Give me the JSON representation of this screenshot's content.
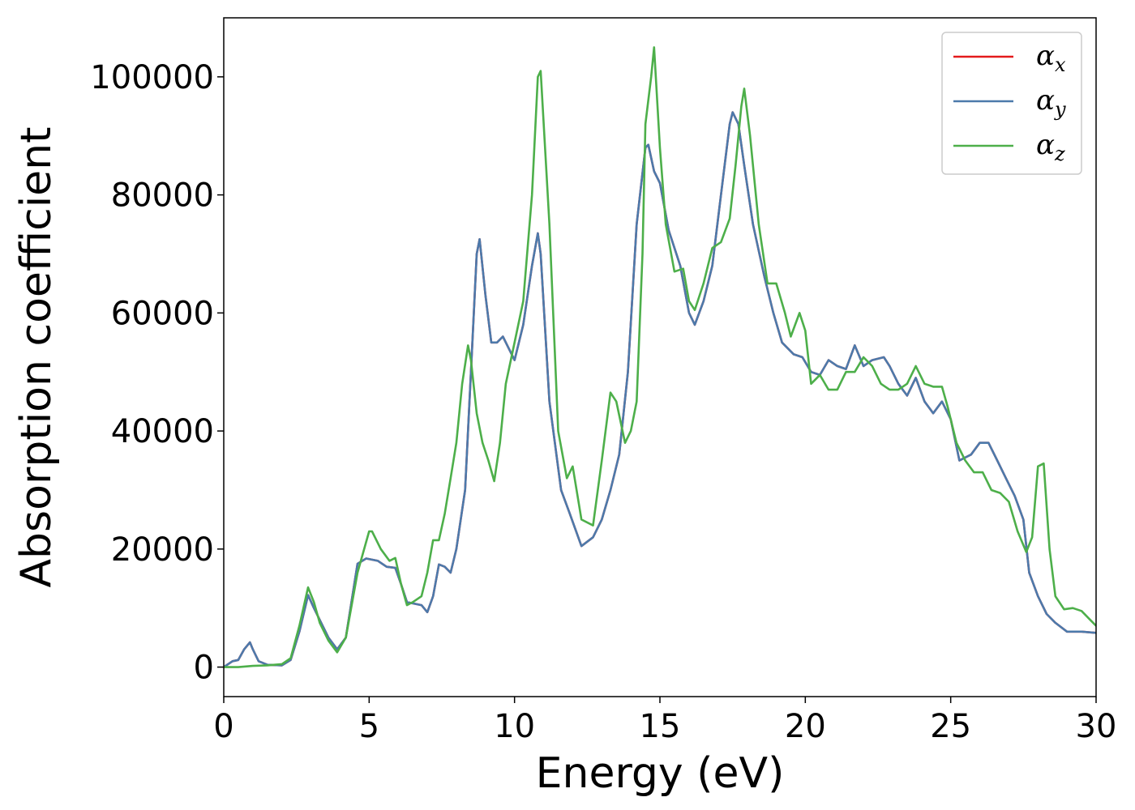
{
  "chart_data": {
    "type": "line",
    "title": "",
    "xlabel": "Energy (eV)",
    "ylabel": "Absorption coefficient",
    "xlim": [
      0,
      30
    ],
    "ylim": [
      -5000,
      110000
    ],
    "xticks": [
      0,
      5,
      10,
      15,
      20,
      25,
      30
    ],
    "yticks": [
      0,
      20000,
      40000,
      60000,
      80000,
      100000
    ],
    "grid": false,
    "legend_position": "top-right",
    "series": [
      {
        "name": "α",
        "subscript": "x",
        "color": "#e41a1c",
        "x": [
          0,
          0.3,
          0.5,
          0.7,
          0.9,
          1.0,
          1.2,
          1.5,
          2.0,
          2.3,
          2.6,
          2.9,
          3.1,
          3.3,
          3.6,
          3.9,
          4.2,
          4.6,
          4.9,
          5.3,
          5.6,
          5.9,
          6.1,
          6.3,
          6.5,
          6.8,
          7.0,
          7.2,
          7.4,
          7.6,
          7.8,
          8.0,
          8.3,
          8.5,
          8.7,
          8.8,
          9.0,
          9.2,
          9.4,
          9.6,
          9.8,
          10.0,
          10.3,
          10.6,
          10.8,
          10.9,
          11.2,
          11.6,
          11.9,
          12.3,
          12.7,
          13.0,
          13.3,
          13.6,
          13.9,
          14.2,
          14.5,
          14.6,
          14.8,
          15.0,
          15.3,
          15.7,
          16.0,
          16.2,
          16.5,
          16.8,
          17.1,
          17.4,
          17.5,
          17.7,
          17.9,
          18.2,
          18.6,
          18.9,
          19.2,
          19.6,
          19.9,
          20.2,
          20.5,
          20.8,
          21.1,
          21.4,
          21.7,
          22.0,
          22.3,
          22.7,
          22.9,
          23.2,
          23.5,
          23.8,
          24.1,
          24.4,
          24.7,
          25.0,
          25.3,
          25.7,
          26.0,
          26.3,
          26.6,
          26.9,
          27.2,
          27.5,
          27.7,
          28.0,
          28.3,
          28.6,
          29.0,
          29.5,
          30.0
        ],
        "y": [
          0,
          1000,
          1200,
          3000,
          4200,
          3000,
          1000,
          400,
          300,
          1200,
          6000,
          12200,
          10000,
          8000,
          5000,
          3000,
          5000,
          17500,
          18400,
          18000,
          17000,
          16800,
          14000,
          11000,
          10800,
          10500,
          9300,
          12000,
          17400,
          17000,
          16000,
          20000,
          30000,
          50000,
          70000,
          72500,
          63000,
          55000,
          55000,
          56000,
          54000,
          52000,
          58000,
          68000,
          73500,
          70000,
          45000,
          30000,
          26000,
          20500,
          22000,
          25000,
          30000,
          36000,
          50000,
          75000,
          88000,
          88500,
          84000,
          82000,
          74000,
          68000,
          60000,
          58000,
          62000,
          68000,
          80000,
          92000,
          94000,
          92000,
          85000,
          75000,
          66000,
          60000,
          55000,
          53000,
          52500,
          50000,
          49500,
          52000,
          51000,
          50500,
          54500,
          51000,
          52000,
          52500,
          51000,
          48000,
          46000,
          49000,
          45000,
          43000,
          45000,
          42000,
          35000,
          36000,
          38000,
          38000,
          35000,
          32000,
          29000,
          25000,
          16000,
          12000,
          9000,
          7500,
          6000,
          6000,
          5800
        ]
      },
      {
        "name": "α",
        "subscript": "y",
        "color": "#4c7aab",
        "x": [
          0,
          0.3,
          0.5,
          0.7,
          0.9,
          1.0,
          1.2,
          1.5,
          2.0,
          2.3,
          2.6,
          2.9,
          3.1,
          3.3,
          3.6,
          3.9,
          4.2,
          4.6,
          4.9,
          5.3,
          5.6,
          5.9,
          6.1,
          6.3,
          6.5,
          6.8,
          7.0,
          7.2,
          7.4,
          7.6,
          7.8,
          8.0,
          8.3,
          8.5,
          8.7,
          8.8,
          9.0,
          9.2,
          9.4,
          9.6,
          9.8,
          10.0,
          10.3,
          10.6,
          10.8,
          10.9,
          11.2,
          11.6,
          11.9,
          12.3,
          12.7,
          13.0,
          13.3,
          13.6,
          13.9,
          14.2,
          14.5,
          14.6,
          14.8,
          15.0,
          15.3,
          15.7,
          16.0,
          16.2,
          16.5,
          16.8,
          17.1,
          17.4,
          17.5,
          17.7,
          17.9,
          18.2,
          18.6,
          18.9,
          19.2,
          19.6,
          19.9,
          20.2,
          20.5,
          20.8,
          21.1,
          21.4,
          21.7,
          22.0,
          22.3,
          22.7,
          22.9,
          23.2,
          23.5,
          23.8,
          24.1,
          24.4,
          24.7,
          25.0,
          25.3,
          25.7,
          26.0,
          26.3,
          26.6,
          26.9,
          27.2,
          27.5,
          27.7,
          28.0,
          28.3,
          28.6,
          29.0,
          29.5,
          30.0
        ],
        "y": [
          0,
          1000,
          1200,
          3000,
          4200,
          3000,
          1000,
          400,
          300,
          1200,
          6000,
          12200,
          10000,
          8000,
          5000,
          3000,
          5000,
          17500,
          18400,
          18000,
          17000,
          16800,
          14000,
          11000,
          10800,
          10500,
          9300,
          12000,
          17400,
          17000,
          16000,
          20000,
          30000,
          50000,
          70000,
          72500,
          63000,
          55000,
          55000,
          56000,
          54000,
          52000,
          58000,
          68000,
          73500,
          70000,
          45000,
          30000,
          26000,
          20500,
          22000,
          25000,
          30000,
          36000,
          50000,
          75000,
          88000,
          88500,
          84000,
          82000,
          74000,
          68000,
          60000,
          58000,
          62000,
          68000,
          80000,
          92000,
          94000,
          92000,
          85000,
          75000,
          66000,
          60000,
          55000,
          53000,
          52500,
          50000,
          49500,
          52000,
          51000,
          50500,
          54500,
          51000,
          52000,
          52500,
          51000,
          48000,
          46000,
          49000,
          45000,
          43000,
          45000,
          42000,
          35000,
          36000,
          38000,
          38000,
          35000,
          32000,
          29000,
          25000,
          16000,
          12000,
          9000,
          7500,
          6000,
          6000,
          5800
        ]
      },
      {
        "name": "α",
        "subscript": "z",
        "color": "#4daf4a",
        "x": [
          0,
          0.5,
          1.0,
          1.5,
          2.0,
          2.3,
          2.6,
          2.9,
          3.1,
          3.3,
          3.6,
          3.9,
          4.2,
          4.6,
          5.0,
          5.1,
          5.4,
          5.7,
          5.9,
          6.1,
          6.3,
          6.5,
          6.8,
          7.0,
          7.2,
          7.4,
          7.6,
          7.8,
          8.0,
          8.2,
          8.4,
          8.5,
          8.7,
          8.9,
          9.1,
          9.3,
          9.5,
          9.7,
          10.0,
          10.3,
          10.6,
          10.8,
          10.9,
          11.2,
          11.5,
          11.8,
          12.0,
          12.3,
          12.7,
          13.0,
          13.3,
          13.5,
          13.8,
          14.0,
          14.2,
          14.4,
          14.5,
          14.7,
          14.8,
          15.0,
          15.2,
          15.5,
          15.8,
          16.0,
          16.2,
          16.5,
          16.8,
          17.1,
          17.4,
          17.6,
          17.8,
          17.9,
          18.1,
          18.4,
          18.7,
          19.0,
          19.3,
          19.5,
          19.8,
          20.0,
          20.2,
          20.5,
          20.8,
          21.1,
          21.4,
          21.7,
          22.0,
          22.3,
          22.6,
          22.9,
          23.2,
          23.5,
          23.8,
          24.1,
          24.4,
          24.7,
          24.9,
          25.2,
          25.5,
          25.8,
          26.1,
          26.4,
          26.7,
          27.0,
          27.3,
          27.6,
          27.8,
          28.0,
          28.2,
          28.4,
          28.6,
          28.9,
          29.2,
          29.5,
          29.8,
          30.0
        ],
        "y": [
          0,
          0,
          200,
          300,
          500,
          1500,
          7000,
          13500,
          11000,
          7500,
          4500,
          2500,
          5000,
          16000,
          23000,
          23000,
          20000,
          18000,
          18500,
          14000,
          10500,
          11000,
          12000,
          16000,
          21500,
          21500,
          26000,
          32000,
          38000,
          48000,
          54500,
          52000,
          43000,
          38000,
          35000,
          31500,
          38000,
          48000,
          55000,
          62000,
          80000,
          100000,
          101000,
          75000,
          40000,
          32000,
          34000,
          25000,
          24000,
          35000,
          46500,
          45000,
          38000,
          40000,
          45000,
          70000,
          92000,
          100000,
          105000,
          88000,
          75000,
          67000,
          67500,
          62000,
          60500,
          65000,
          71000,
          72000,
          76000,
          85000,
          95000,
          98000,
          90000,
          75000,
          65000,
          65000,
          60000,
          56000,
          60000,
          57000,
          48000,
          49500,
          47000,
          47000,
          50000,
          50000,
          52500,
          51000,
          48000,
          47000,
          47000,
          48000,
          51000,
          48000,
          47500,
          47500,
          44000,
          38000,
          35000,
          33000,
          33000,
          30000,
          29500,
          28000,
          23000,
          19500,
          22000,
          34000,
          34500,
          20000,
          12000,
          9800,
          10000,
          9500,
          8000,
          7000
        ]
      }
    ]
  }
}
